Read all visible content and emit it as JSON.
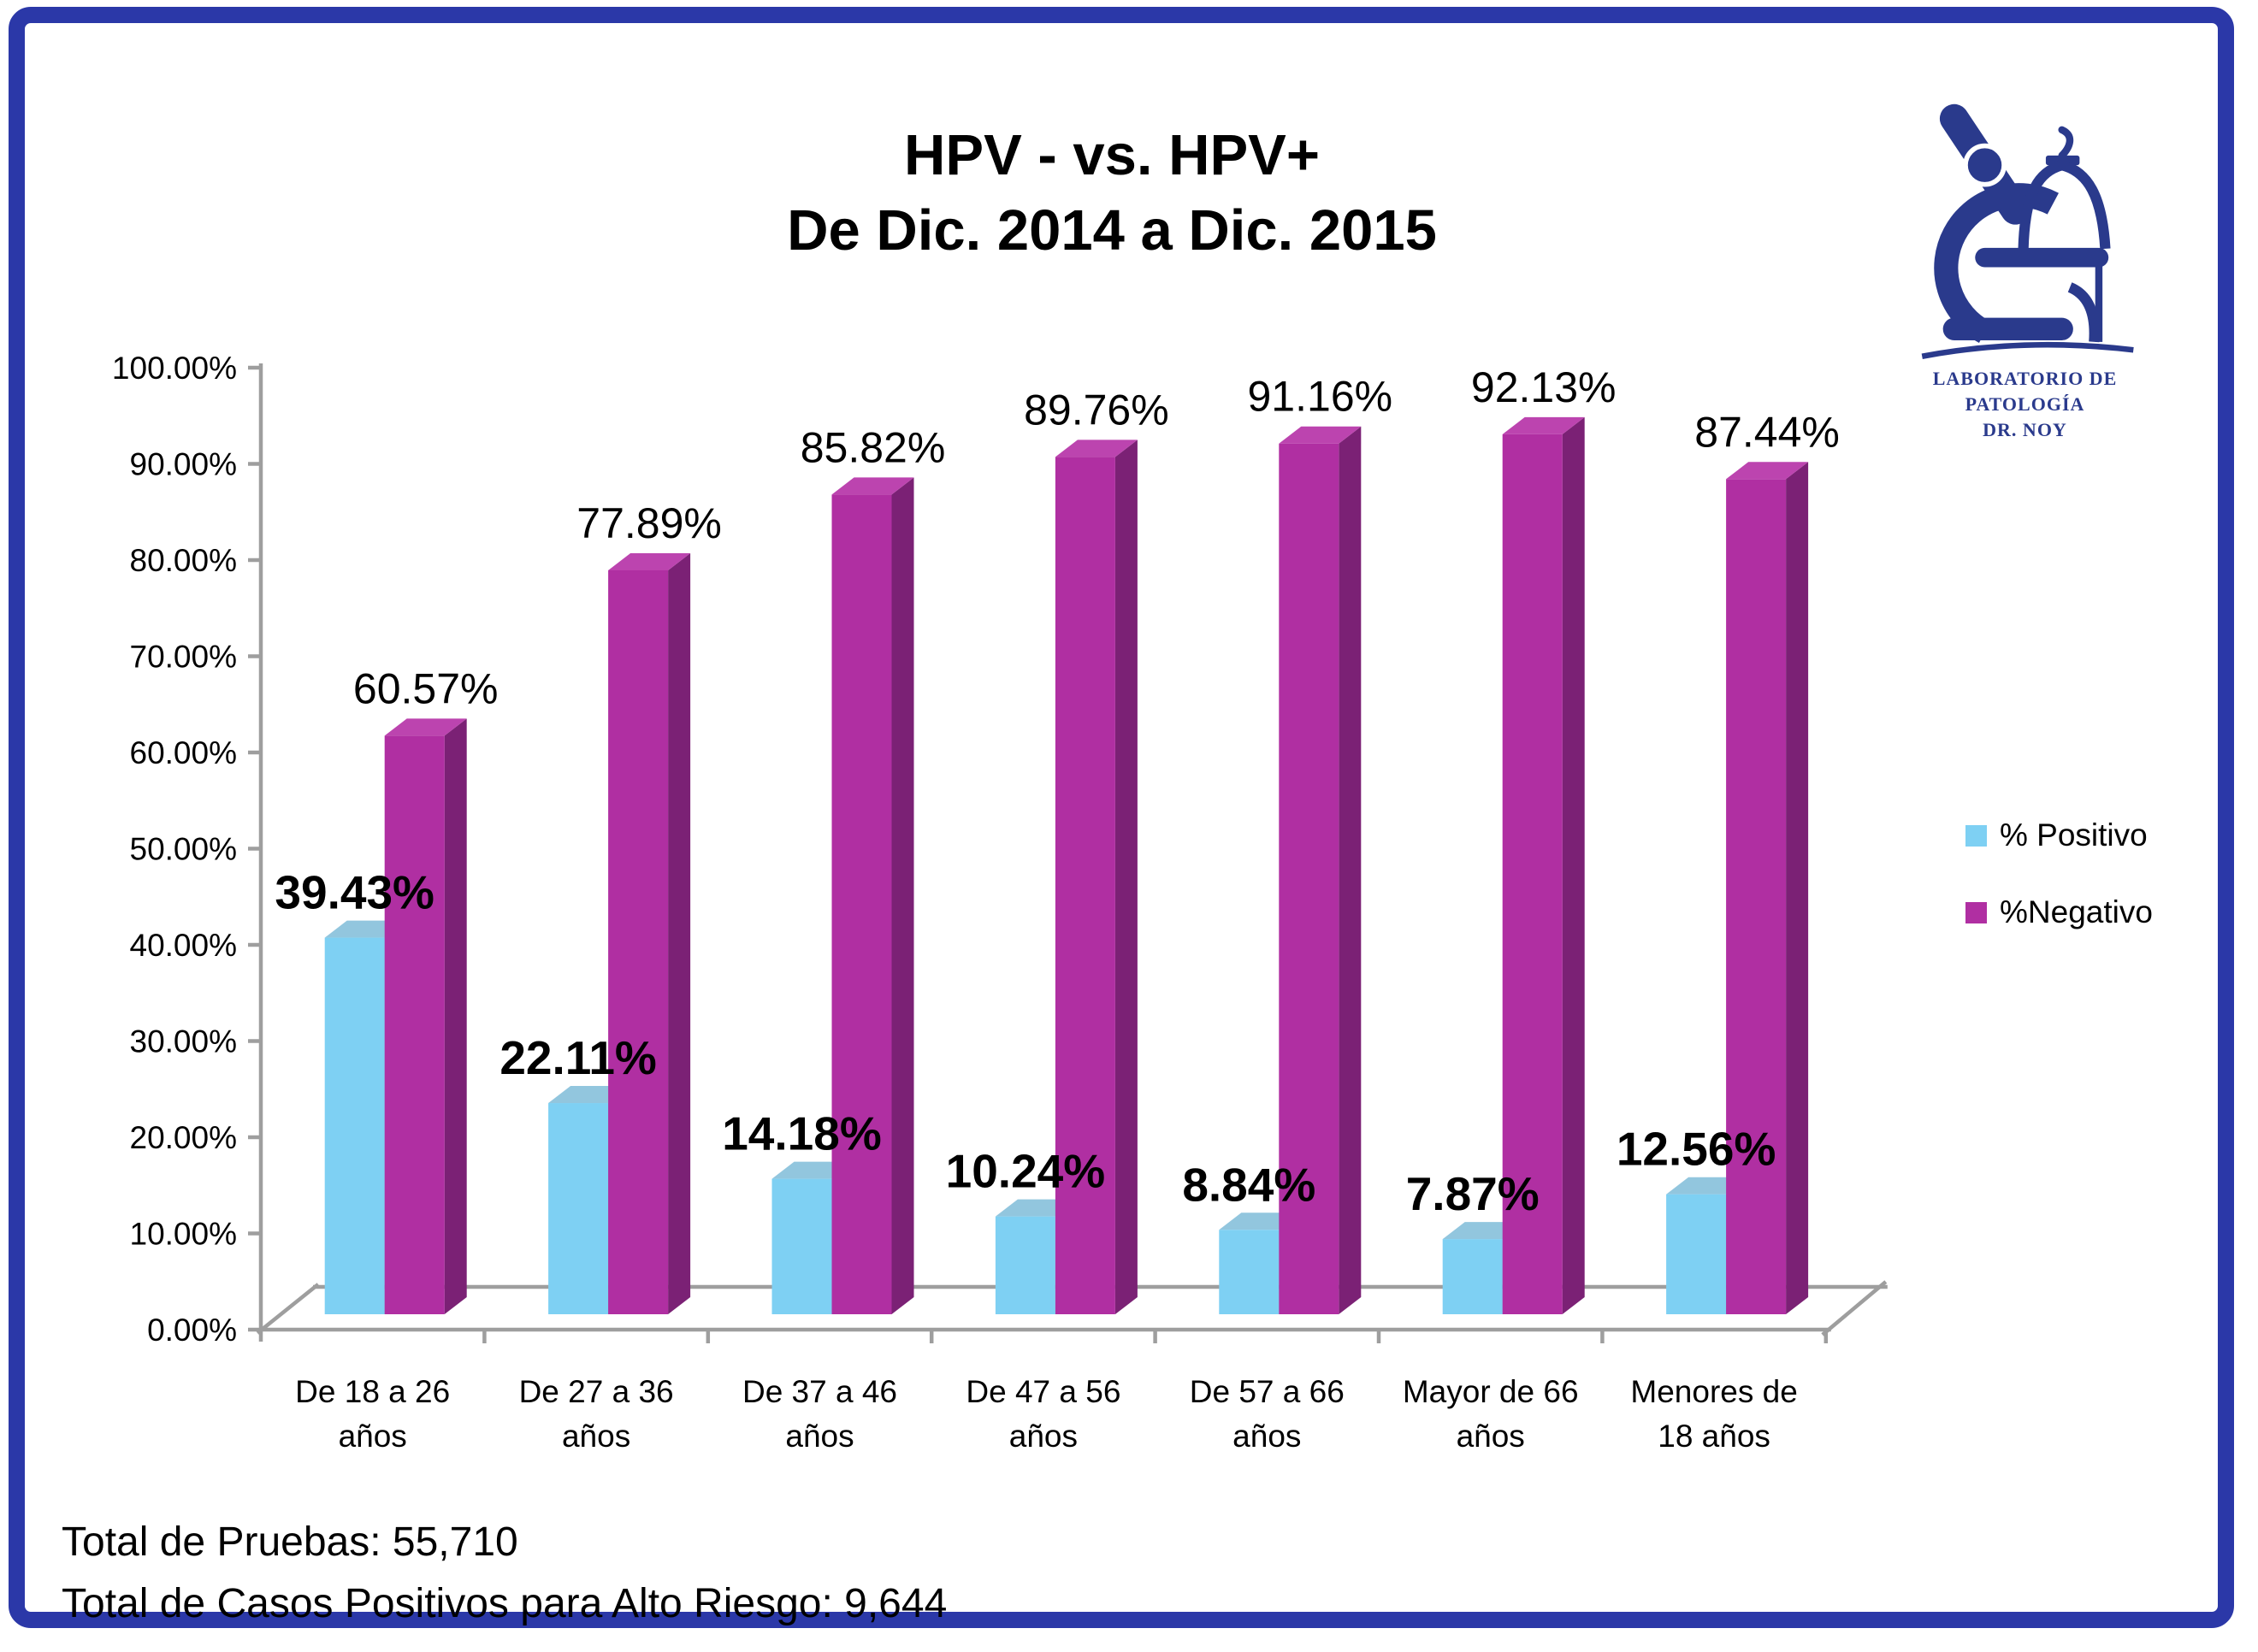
{
  "page": {
    "border_color": "#2B38A8",
    "background": "#FFFFFF"
  },
  "title": {
    "line1": "HPV - vs. HPV+",
    "line2": "De Dic. 2014 a Dic. 2015"
  },
  "logo": {
    "line1": "LABORATORIO DE",
    "line2": "PATOLOGÍA",
    "line3": "DR. NOY",
    "color": "#2A3A8C"
  },
  "legend": {
    "items": [
      {
        "label": "% Positivo",
        "color": "#7ED0F3"
      },
      {
        "label": "%Negativo",
        "color": "#B02FA2"
      }
    ]
  },
  "footer": {
    "line1": "Total de Pruebas: 55,710",
    "line2": "Total de Casos Positivos para Alto Riesgo:  9,644"
  },
  "chart_data": {
    "type": "bar",
    "style": "3d-clustered",
    "title": "HPV - vs. HPV+ De Dic. 2014 a Dic. 2015",
    "categories": [
      "De 18 a 26 años",
      "De 27 a 36 años",
      "De 37 a 46 años",
      "De 47 a 56 años",
      "De 57 a 66 años",
      "Mayor de 66 años",
      "Menores de 18 años"
    ],
    "category_label_lines": [
      [
        "De 18 a 26",
        "años"
      ],
      [
        "De 27 a 36",
        "años"
      ],
      [
        "De 37 a 46",
        "años"
      ],
      [
        "De 47 a 56",
        "años"
      ],
      [
        "De 57 a 66",
        "años"
      ],
      [
        "Mayor de 66",
        "años"
      ],
      [
        "Menores de",
        "18 años"
      ]
    ],
    "series": [
      {
        "name": "% Positivo",
        "values": [
          39.43,
          22.11,
          14.18,
          10.24,
          8.84,
          7.87,
          12.56
        ],
        "labels": [
          "39.43%",
          "22.11%",
          "14.18%",
          "10.24%",
          "8.84%",
          "7.87%",
          "12.56%"
        ],
        "color": "#7ED0F3",
        "top_color": "#92C6DE",
        "side_color": "#55A0C4",
        "label_weight": "bold"
      },
      {
        "name": "%Negativo",
        "values": [
          60.57,
          77.89,
          85.82,
          89.76,
          91.16,
          92.13,
          87.44
        ],
        "labels": [
          "60.57%",
          "77.89%",
          "85.82%",
          "89.76%",
          "91.16%",
          "92.13%",
          "87.44%"
        ],
        "color": "#B02FA2",
        "top_color": "#BC44AF",
        "side_color": "#7B2175",
        "label_weight": "regular"
      }
    ],
    "y_axis": {
      "min": 0,
      "max": 100,
      "step": 10,
      "tick_labels": [
        "0.00%",
        "10.00%",
        "20.00%",
        "30.00%",
        "40.00%",
        "50.00%",
        "60.00%",
        "70.00%",
        "80.00%",
        "90.00%",
        "100.00%"
      ]
    },
    "xlabel": "",
    "ylabel": "",
    "grid": false,
    "legend_position": "right",
    "axis_color": "#9E9E9E"
  }
}
